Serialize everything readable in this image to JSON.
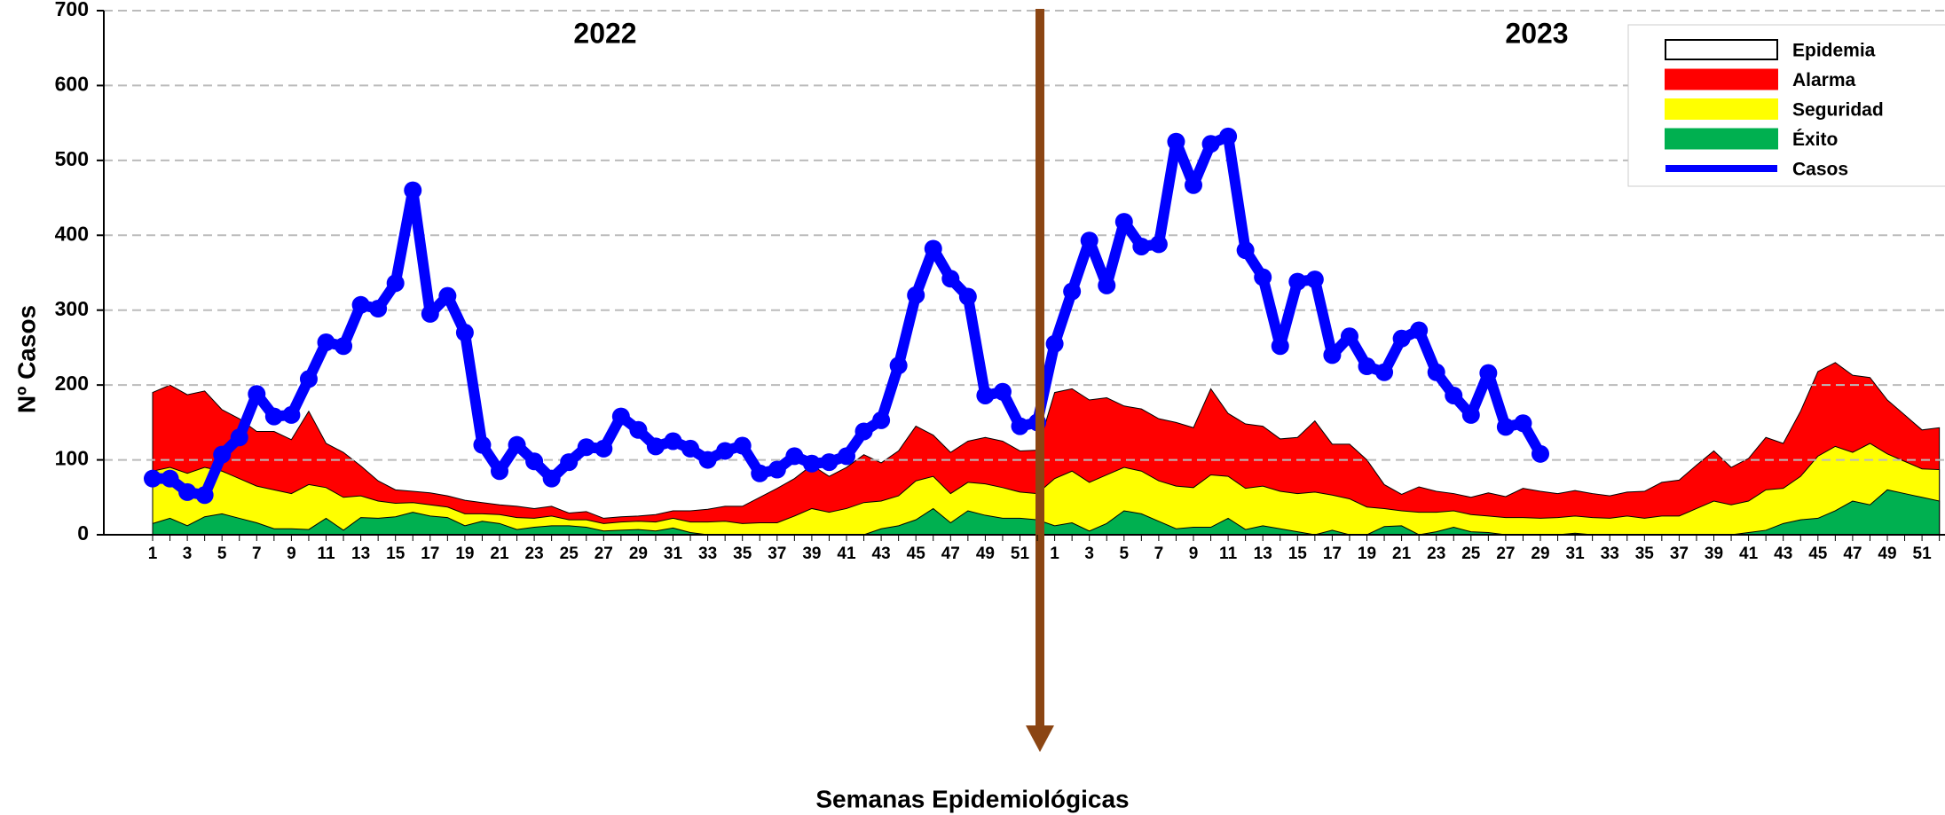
{
  "chart_data": {
    "type": "area",
    "y_label": "Nº Casos",
    "x_label": "Semanas Epidemiológicas",
    "annotations": [
      "2022",
      "2023"
    ],
    "categories": [
      1,
      null,
      3,
      null,
      5,
      null,
      7,
      null,
      9,
      null,
      11,
      null,
      13,
      null,
      15,
      null,
      17,
      null,
      19,
      null,
      21,
      null,
      23,
      null,
      25,
      null,
      27,
      null,
      29,
      null,
      31,
      null,
      33,
      null,
      35,
      null,
      37,
      null,
      39,
      null,
      41,
      null,
      43,
      null,
      45,
      null,
      47,
      null,
      49,
      null,
      51,
      null,
      1,
      null,
      3,
      null,
      5,
      null,
      7,
      null,
      9,
      null,
      11,
      null,
      13,
      null,
      15,
      null,
      17,
      null,
      19,
      null,
      21,
      null,
      23,
      null,
      25,
      null,
      27,
      null,
      29,
      null,
      31,
      null,
      33,
      null,
      35,
      null,
      37,
      null,
      39,
      null,
      41,
      null,
      43,
      null,
      45,
      null,
      47,
      null,
      49,
      null,
      51,
      null
    ],
    "ylim": [
      0,
      700
    ],
    "yticks": [
      0,
      100,
      200,
      300,
      400,
      500,
      600,
      700
    ],
    "grid": true,
    "legend": "upper right",
    "series": [
      {
        "name": "Epidemia",
        "color": "#ffffff"
      },
      {
        "name": "Alarma",
        "color": "#ff0000",
        "values": [
          190,
          200,
          187,
          192,
          167,
          155,
          138,
          138,
          127,
          165,
          122,
          110,
          92,
          72,
          60,
          58,
          56,
          52,
          46,
          43,
          40,
          38,
          35,
          38,
          29,
          31,
          22,
          24,
          25,
          27,
          32,
          32,
          34,
          38,
          38,
          50,
          62,
          75,
          93,
          78,
          90,
          107,
          96,
          112,
          145,
          133,
          110,
          125,
          130,
          125,
          112,
          113,
          190,
          195,
          180,
          183,
          172,
          168,
          155,
          150,
          143,
          195,
          162,
          148,
          145,
          128,
          130,
          152,
          121,
          121,
          100,
          67,
          54,
          64,
          58,
          55,
          50,
          56,
          51,
          62,
          58,
          55,
          59,
          55,
          52,
          57,
          58,
          70,
          73,
          93,
          112,
          90,
          102,
          130,
          122,
          165,
          218,
          230,
          213,
          210,
          180,
          160,
          140,
          143
        ]
      },
      {
        "name": "Seguridad",
        "color": "#ffff00",
        "values": [
          85,
          90,
          82,
          90,
          85,
          75,
          65,
          60,
          55,
          67,
          63,
          50,
          52,
          45,
          42,
          43,
          40,
          37,
          28,
          28,
          27,
          23,
          22,
          25,
          20,
          20,
          15,
          17,
          18,
          17,
          22,
          17,
          17,
          18,
          15,
          16,
          16,
          25,
          35,
          30,
          35,
          43,
          45,
          52,
          72,
          78,
          55,
          70,
          68,
          63,
          57,
          55,
          75,
          85,
          70,
          80,
          90,
          85,
          72,
          65,
          63,
          80,
          78,
          62,
          65,
          58,
          55,
          57,
          53,
          48,
          37,
          35,
          32,
          30,
          30,
          32,
          27,
          25,
          23,
          23,
          22,
          23,
          25,
          23,
          22,
          25,
          22,
          25,
          25,
          35,
          45,
          40,
          45,
          60,
          62,
          78,
          105,
          118,
          110,
          122,
          108,
          98,
          88,
          87
        ]
      },
      {
        "name": "Éxito",
        "color": "#00b050",
        "values": [
          15,
          22,
          12,
          24,
          28,
          22,
          16,
          8,
          8,
          7,
          22,
          6,
          23,
          22,
          24,
          30,
          25,
          23,
          12,
          18,
          15,
          7,
          10,
          12,
          12,
          10,
          5,
          6,
          7,
          5,
          9,
          3,
          0,
          0,
          0,
          0,
          0,
          0,
          0,
          0,
          0,
          0,
          8,
          12,
          20,
          35,
          16,
          32,
          26,
          22,
          22,
          20,
          12,
          16,
          5,
          15,
          32,
          28,
          18,
          8,
          10,
          10,
          22,
          7,
          12,
          8,
          4,
          0,
          6,
          0,
          0,
          11,
          12,
          0,
          4,
          10,
          4,
          3,
          0,
          0,
          0,
          0,
          2,
          0,
          0,
          0,
          0,
          0,
          0,
          0,
          0,
          0,
          3,
          6,
          15,
          20,
          22,
          32,
          45,
          40,
          60,
          55,
          50,
          45
        ]
      },
      {
        "name": "Casos",
        "color": "#0000ff",
        "type": "line",
        "values": [
          75,
          75,
          57,
          53,
          107,
          130,
          188,
          158,
          160,
          208,
          257,
          252,
          307,
          302,
          336,
          460,
          295,
          319,
          270,
          120,
          85,
          120,
          98,
          75,
          97,
          117,
          115,
          158,
          140,
          118,
          125,
          115,
          100,
          112,
          119,
          82,
          87,
          105,
          95,
          97,
          105,
          138,
          153,
          226,
          320,
          382,
          342,
          318,
          186,
          191,
          145,
          150,
          255,
          325,
          393,
          333,
          418,
          385,
          388,
          525,
          467,
          522,
          532,
          380,
          344,
          252,
          338,
          341,
          240,
          265,
          225,
          217,
          262,
          273,
          217,
          186,
          160,
          216,
          144,
          149,
          108,
          null,
          null,
          null,
          null,
          null,
          null,
          null,
          null,
          null,
          null,
          null,
          null,
          null,
          null,
          null,
          null,
          null,
          null,
          null,
          null,
          null,
          null,
          null
        ]
      }
    ]
  }
}
